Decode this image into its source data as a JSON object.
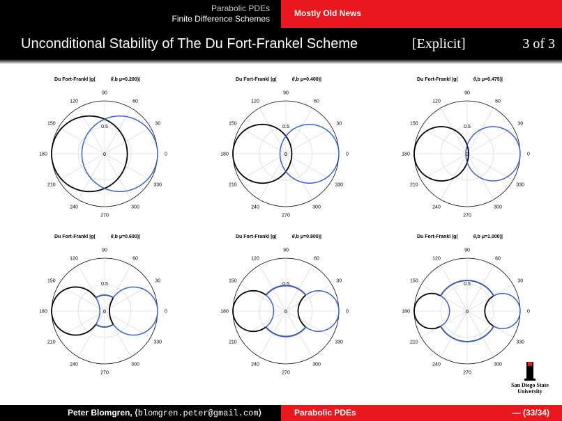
{
  "header": {
    "course": "Parabolic PDEs",
    "subtitle": "Finite Difference Schemes",
    "section": "Mostly Old News"
  },
  "slide": {
    "title": "Unconditional Stability of The Du Fort-Frankel Scheme",
    "tag": "[Explicit]",
    "page": "3 of 3"
  },
  "footer": {
    "author": "Peter Blomgren,",
    "email_open": "⟨",
    "email": "blomgren.peter@gmail.com",
    "email_close": "⟩",
    "topic": "Parabolic PDEs",
    "page": "— (33/34)"
  },
  "logo": {
    "line1": "San Diego State",
    "line2": "University"
  },
  "colors": {
    "red": "#e8181e",
    "series_outer": "#000000",
    "series_inner": "#3a5fc8"
  },
  "chart_data": [
    {
      "type": "polar",
      "title": "Du Fort-Frankl |g(",
      "title_suffix": ",b",
      "mu_label": "μ=0.200)|",
      "theta_label": "θ",
      "angle_labels": [
        "0",
        "30",
        "60",
        "90",
        "120",
        "150",
        "180",
        "210",
        "240",
        "270",
        "300",
        "330"
      ],
      "radial_labels": [
        "0",
        "0.5"
      ],
      "rlim": [
        0,
        1
      ],
      "mu": 0.2,
      "series": [
        {
          "name": "",
          "color": "#000000"
        },
        {
          "name": "",
          "color": "#3a5fc8"
        }
      ]
    },
    {
      "type": "polar",
      "title": "Du Fort-Frankl |g(",
      "title_suffix": ",b",
      "mu_label": "μ=0.400)|",
      "theta_label": "θ",
      "angle_labels": [
        "0",
        "30",
        "60",
        "90",
        "120",
        "150",
        "180",
        "210",
        "240",
        "270",
        "300",
        "330"
      ],
      "radial_labels": [
        "0",
        "0.5"
      ],
      "rlim": [
        0,
        1
      ],
      "mu": 0.4,
      "series": [
        {
          "name": "",
          "color": "#000000"
        },
        {
          "name": "",
          "color": "#3a5fc8"
        }
      ]
    },
    {
      "type": "polar",
      "title": "Du Fort-Frankl |g(",
      "title_suffix": ",b",
      "mu_label": "μ=0.475)|",
      "theta_label": "θ",
      "angle_labels": [
        "0",
        "30",
        "60",
        "90",
        "120",
        "150",
        "180",
        "210",
        "240",
        "270",
        "300",
        "330"
      ],
      "radial_labels": [
        "0",
        "0.5"
      ],
      "rlim": [
        0,
        1
      ],
      "mu": 0.475,
      "series": [
        {
          "name": "",
          "color": "#000000"
        },
        {
          "name": "",
          "color": "#3a5fc8"
        }
      ]
    },
    {
      "type": "polar",
      "title": "Du Fort-Frankl |g(",
      "title_suffix": ",b",
      "mu_label": "μ=0.600)|",
      "theta_label": "θ",
      "angle_labels": [
        "0",
        "30",
        "60",
        "90",
        "120",
        "150",
        "180",
        "210",
        "240",
        "270",
        "300",
        "330"
      ],
      "radial_labels": [
        "0",
        "0.5"
      ],
      "rlim": [
        0,
        1
      ],
      "mu": 0.6,
      "series": [
        {
          "name": "",
          "color": "#000000"
        },
        {
          "name": "",
          "color": "#3a5fc8"
        }
      ]
    },
    {
      "type": "polar",
      "title": "Du Fort-Frankl |g(",
      "title_suffix": ",b",
      "mu_label": "μ=0.800)|",
      "theta_label": "θ",
      "angle_labels": [
        "0",
        "30",
        "60",
        "90",
        "120",
        "150",
        "180",
        "210",
        "240",
        "270",
        "300",
        "330"
      ],
      "radial_labels": [
        "0",
        "0.5"
      ],
      "rlim": [
        0,
        1
      ],
      "mu": 0.8,
      "series": [
        {
          "name": "",
          "color": "#000000"
        },
        {
          "name": "",
          "color": "#3a5fc8"
        }
      ]
    },
    {
      "type": "polar",
      "title": "Du Fort-Frankl |g(",
      "title_suffix": ",b",
      "mu_label": "μ=1.000)|",
      "theta_label": "θ",
      "angle_labels": [
        "0",
        "30",
        "60",
        "90",
        "120",
        "150",
        "180",
        "210",
        "240",
        "270",
        "300",
        "330"
      ],
      "radial_labels": [
        "0",
        "0.5"
      ],
      "rlim": [
        0,
        1
      ],
      "mu": 1.0,
      "series": [
        {
          "name": "",
          "color": "#000000"
        },
        {
          "name": "",
          "color": "#3a5fc8"
        }
      ]
    }
  ]
}
